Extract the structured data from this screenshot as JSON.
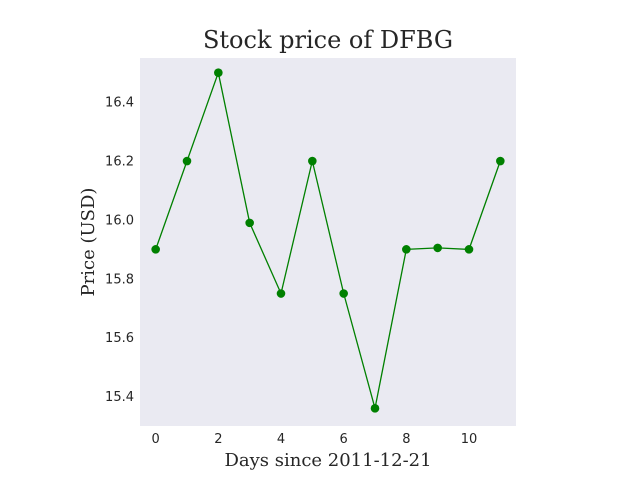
{
  "chart_data": {
    "type": "line",
    "title": "Stock price of DFBG",
    "xlabel": "Days since 2011-12-21",
    "ylabel": "Price (USD)",
    "x": [
      0,
      1,
      2,
      3,
      4,
      5,
      6,
      7,
      8,
      9,
      10,
      11
    ],
    "y": [
      15.9,
      16.2,
      16.5,
      15.99,
      15.75,
      16.2,
      15.75,
      15.36,
      15.9,
      15.905,
      15.9,
      16.2
    ],
    "xlim": [
      -0.5,
      11.5
    ],
    "ylim": [
      15.3,
      16.55
    ],
    "xticks": [
      "0",
      "2",
      "4",
      "6",
      "8",
      "10"
    ],
    "yticks": [
      "15.4",
      "15.6",
      "15.8",
      "16.0",
      "16.2",
      "16.4"
    ],
    "grid": false,
    "line_color": "#008000",
    "marker_color": "#008000",
    "background_color": "#eaeaf2"
  }
}
